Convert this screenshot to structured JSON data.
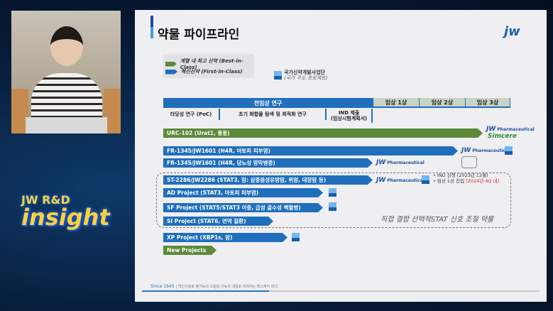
{
  "overlay": {
    "brand_top": "JW R&D",
    "brand_main": "insight"
  },
  "slide": {
    "title": "약물 파이프라인",
    "logo": "jw",
    "legend": {
      "best": "계열 내 최고 신약 (Best-in-Class)",
      "first": "혁신신약 (First-in-Class)",
      "kddf": "국가신약개발사업단",
      "kddf_sub": "(국가 주도 프로젝트)",
      "kddf_badge": "KDDF"
    },
    "phases": {
      "preclinical": "전임상 연구",
      "p1": "임상 1상",
      "p2": "임상 2상",
      "p3": "임상 3상"
    },
    "subphases": [
      "타당성 연구 (PoC)",
      "초기 화합물 탐색 및 최적화 연구",
      "IND 제출\n(임상시험계획서)"
    ],
    "projects": [
      {
        "label": "URC-102 (Urat1, 통풍)",
        "type": "best"
      },
      {
        "label": "FR-1345/JW1601 (H4R, 아토피 피부염)",
        "type": "first"
      },
      {
        "label": "FR-1345/JW1601 (H4R, 당뇨성 망막병증)",
        "type": "first"
      },
      {
        "label": "ST-2286/JW2286 (STAT3, 암: 삼중음성유방암, 위암, 대장암 등)",
        "type": "first"
      },
      {
        "label": "AD Project (STAT3, 아토피 피부염)",
        "type": "first"
      },
      {
        "label": "SF Project (STAT5/STAT3 이중, 급성 골수성 백혈병)",
        "type": "first"
      },
      {
        "label": "SI Project (STAT6, 면역 질환)",
        "type": "first"
      },
      {
        "label": "XP Project (XBP1s, 암)",
        "type": "first"
      },
      {
        "label": "New Projects",
        "type": "best"
      }
    ],
    "partners": {
      "jw": "JW",
      "pharma": "Pharmaceutical",
      "simcere": "Simcere"
    },
    "notes": {
      "ind": "IND 신청 (2023년 12월)",
      "p1_prefix": "임상 1상 진입 ",
      "p1_red": "(2024년 4Q 내)"
    },
    "stat_group": "직접 결합 선택적STAT 신호 조절 약물",
    "footer": {
      "since": "Since 1945",
      "sep": "|",
      "slogan": "혁신기술로 불가능의 오늘을 가능의 내일로 개척하는 헬스케어 리더"
    }
  },
  "colors": {
    "blue": "#1f6fbc",
    "green": "#5a8a3a",
    "red": "#d42020"
  }
}
